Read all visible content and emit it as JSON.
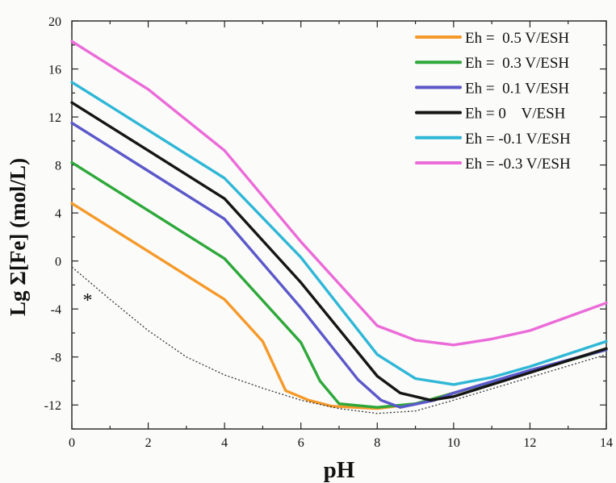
{
  "chart_data": {
    "type": "line",
    "xlabel": "pH",
    "ylabel": "Lg Σ[Fe] (mol/L)",
    "xlim": [
      0,
      14
    ],
    "ylim": [
      -14,
      20
    ],
    "xticks": [
      0,
      2,
      4,
      6,
      8,
      10,
      12,
      14
    ],
    "yticks": [
      -12,
      -8,
      -4,
      0,
      4,
      8,
      12,
      16,
      20
    ],
    "x_minor_step": 1,
    "y_minor_step": 2,
    "grid": false,
    "legend_position": "top-right",
    "annotation": "*",
    "series": [
      {
        "name": "Eh =  0.5 V/ESH",
        "color": "#f59a2a",
        "points": [
          [
            0,
            4.8
          ],
          [
            2,
            0.8
          ],
          [
            4,
            -3.2
          ],
          [
            5,
            -6.7
          ],
          [
            5.6,
            -10.8
          ],
          [
            6.2,
            -11.6
          ],
          [
            6.8,
            -12.1
          ],
          [
            8,
            -12.3
          ],
          [
            9,
            -11.9
          ],
          [
            10,
            -11.0
          ],
          [
            12,
            -9.2
          ],
          [
            14,
            -7.4
          ]
        ]
      },
      {
        "name": "Eh =  0.3 V/ESH",
        "color": "#2ea83a",
        "points": [
          [
            0,
            8.2
          ],
          [
            2,
            4.2
          ],
          [
            4,
            0.2
          ],
          [
            6,
            -6.8
          ],
          [
            6.5,
            -10.0
          ],
          [
            7,
            -11.9
          ],
          [
            8,
            -12.2
          ],
          [
            9,
            -11.9
          ],
          [
            10,
            -11.0
          ],
          [
            12,
            -9.2
          ],
          [
            14,
            -7.4
          ]
        ]
      },
      {
        "name": "Eh =  0.1 V/ESH",
        "color": "#5b58c9",
        "points": [
          [
            0,
            11.5
          ],
          [
            2,
            7.5
          ],
          [
            4,
            3.5
          ],
          [
            6,
            -3.9
          ],
          [
            7.5,
            -9.9
          ],
          [
            8.1,
            -11.6
          ],
          [
            8.6,
            -12.2
          ],
          [
            9.5,
            -11.6
          ],
          [
            10,
            -11.0
          ],
          [
            12,
            -9.1
          ],
          [
            14,
            -7.4
          ]
        ]
      },
      {
        "name": "Eh = 0    V/ESH",
        "color": "#151515",
        "points": [
          [
            0,
            13.2
          ],
          [
            2,
            9.2
          ],
          [
            4,
            5.2
          ],
          [
            6,
            -1.8
          ],
          [
            8,
            -9.6
          ],
          [
            8.6,
            -11.0
          ],
          [
            9.4,
            -11.6
          ],
          [
            10,
            -11.3
          ],
          [
            12,
            -9.3
          ],
          [
            14,
            -7.3
          ]
        ]
      },
      {
        "name": "Eh = -0.1 V/ESH",
        "color": "#2fb7d6",
        "points": [
          [
            0,
            14.9
          ],
          [
            2,
            10.9
          ],
          [
            4,
            6.9
          ],
          [
            6,
            0.3
          ],
          [
            8,
            -7.8
          ],
          [
            9,
            -9.8
          ],
          [
            10,
            -10.3
          ],
          [
            11,
            -9.7
          ],
          [
            12,
            -8.8
          ],
          [
            14,
            -6.7
          ]
        ]
      },
      {
        "name": "Eh = -0.3 V/ESH",
        "color": "#eb6bd8",
        "points": [
          [
            0,
            18.3
          ],
          [
            2,
            14.3
          ],
          [
            4,
            9.2
          ],
          [
            6,
            1.6
          ],
          [
            8,
            -5.4
          ],
          [
            9,
            -6.6
          ],
          [
            10,
            -7.0
          ],
          [
            11,
            -6.5
          ],
          [
            12,
            -5.8
          ],
          [
            14,
            -3.5
          ]
        ]
      },
      {
        "name": "",
        "color": "#333333",
        "style": "dotted",
        "points": [
          [
            0,
            -0.5
          ],
          [
            1,
            -3.2
          ],
          [
            2,
            -5.8
          ],
          [
            3,
            -8.0
          ],
          [
            4,
            -9.5
          ],
          [
            5,
            -10.6
          ],
          [
            6,
            -11.6
          ],
          [
            7,
            -12.3
          ],
          [
            8,
            -12.7
          ],
          [
            9,
            -12.5
          ],
          [
            10,
            -11.6
          ],
          [
            12,
            -9.7
          ],
          [
            14,
            -7.8
          ]
        ]
      }
    ]
  }
}
